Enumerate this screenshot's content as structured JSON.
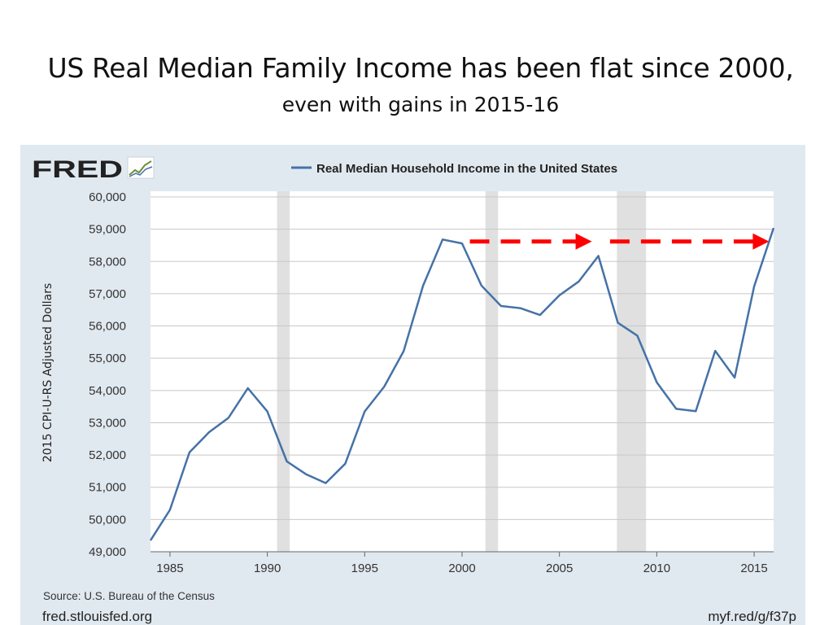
{
  "slide": {
    "title": "US Real Median Family Income has been flat since 2000,",
    "subtitle": "even with gains in 2015-16"
  },
  "chart_data": {
    "type": "line",
    "logo_text": "FRED",
    "legend_label": "Real Median Household Income in the United States",
    "ylabel": "2015 CPI-U-RS Adjusted Dollars",
    "source": "Source: U.S. Bureau of the Census",
    "website": "fred.stlouisfed.org",
    "shortlink": "myf.red/g/f37p",
    "xlim": [
      1984,
      2016
    ],
    "ylim": [
      49000,
      60000
    ],
    "x_ticks": [
      1985,
      1990,
      1995,
      2000,
      2005,
      2010,
      2015
    ],
    "y_ticks": [
      49000,
      50000,
      51000,
      52000,
      53000,
      54000,
      55000,
      56000,
      57000,
      58000,
      59000,
      60000
    ],
    "y_tick_labels": [
      "49,000",
      "50,000",
      "51,000",
      "52,000",
      "53,000",
      "54,000",
      "55,000",
      "56,000",
      "57,000",
      "58,000",
      "59,000",
      "60,000"
    ],
    "recessions": [
      [
        1990.5,
        1991.15
      ],
      [
        2001.2,
        2001.85
      ],
      [
        2007.95,
        2009.45
      ]
    ],
    "series": [
      {
        "name": "Real Median Household Income in the United States",
        "color": "#4572a7",
        "x": [
          1984,
          1985,
          1986,
          1987,
          1988,
          1989,
          1990,
          1991,
          1992,
          1993,
          1994,
          1995,
          1996,
          1997,
          1998,
          1999,
          2000,
          2001,
          2002,
          2003,
          2004,
          2005,
          2006,
          2007,
          2008,
          2009,
          2010,
          2011,
          2012,
          2013,
          2014,
          2015,
          2016
        ],
        "y": [
          49350,
          50300,
          52080,
          52700,
          53150,
          54070,
          53350,
          51800,
          51400,
          51130,
          51730,
          53350,
          54120,
          55220,
          57250,
          58680,
          58560,
          57250,
          56620,
          56550,
          56340,
          56950,
          57380,
          58170,
          56100,
          55700,
          54250,
          53430,
          53360,
          55230,
          54400,
          57230,
          59040
        ]
      }
    ],
    "annotation_arrows": {
      "color": "#ff0000",
      "y": 58620,
      "segments": [
        [
          2000.4,
          2006.5
        ],
        [
          2007.6,
          2015.6
        ]
      ]
    }
  }
}
